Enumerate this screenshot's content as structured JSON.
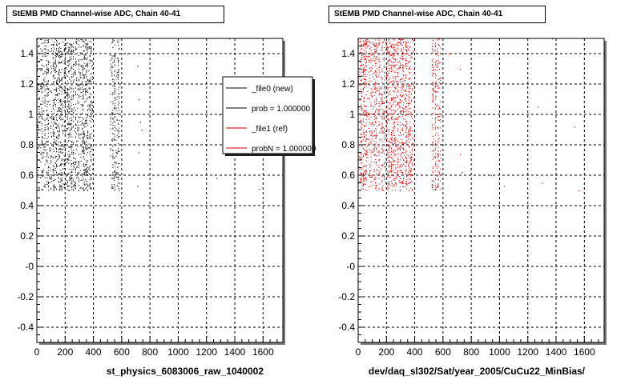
{
  "panels": [
    {
      "title": "StEMB PMD Channel-wise ADC, Chain 40-41",
      "xlabel": "st_physics_6083006_raw_1040002",
      "color": "#000000",
      "legend": [
        {
          "label": "_file0 (new)",
          "color": "#000000"
        },
        {
          "label": "prob = 1.000000",
          "color": "#000000"
        },
        {
          "label": "_file1 (ref)",
          "color": "#cc0000"
        },
        {
          "label": "probN = 1.000000",
          "color": "#cc0000"
        }
      ]
    },
    {
      "title": "StEMB PMD Channel-wise ADC, Chain 40-41",
      "xlabel": "dev/daq_sl302/Sat/year_2005/CuCu22_MinBias/",
      "color": "#dd0000",
      "legend": []
    }
  ],
  "chart_data": [
    {
      "type": "scatter",
      "title": "StEMB PMD Channel-wise ADC, Chain 40-41",
      "xlabel": "st_physics_6083006_raw_1040002",
      "ylabel": "",
      "xlim": [
        0,
        1740
      ],
      "ylim": [
        -0.5,
        1.5
      ],
      "x_ticks": [
        0,
        200,
        400,
        600,
        800,
        1000,
        1200,
        1400,
        1600
      ],
      "y_ticks": [
        -0.4,
        -0.2,
        0,
        0.2,
        0.4,
        0.6,
        0.8,
        1,
        1.2,
        1.4
      ],
      "y_tick_labels": [
        "-0.4",
        "-0.2",
        "-0",
        "0.2",
        "0.4",
        "0.6",
        "0.8",
        "1",
        "1.2",
        "1.4"
      ],
      "grid": true,
      "series": [
        {
          "name": "_file0 (new)",
          "bands": [
            [
              0,
              390,
              0.5,
              1.5
            ],
            [
              520,
              580,
              0.5,
              1.5
            ]
          ],
          "sparse_points": [
            [
              640,
              1.4
            ],
            [
              710,
              1.32
            ],
            [
              720,
              1.2
            ],
            [
              720,
              1.1
            ],
            [
              730,
              0.95
            ],
            [
              740,
              0.9
            ],
            [
              720,
              0.75
            ],
            [
              710,
              0.53
            ],
            [
              1270,
              0.58
            ],
            [
              1360,
              1.5
            ],
            [
              1570,
              0.51
            ],
            [
              1290,
              1.0
            ]
          ]
        }
      ]
    },
    {
      "type": "scatter",
      "title": "StEMB PMD Channel-wise ADC, Chain 40-41",
      "xlabel": "dev/daq_sl302/Sat/year_2005/CuCu22_MinBias/",
      "ylabel": "",
      "xlim": [
        0,
        1740
      ],
      "ylim": [
        -0.5,
        1.5
      ],
      "x_ticks": [
        0,
        200,
        400,
        600,
        800,
        1000,
        1200,
        1400,
        1600
      ],
      "y_ticks": [
        -0.4,
        -0.2,
        0,
        0.2,
        0.4,
        0.6,
        0.8,
        1,
        1.2,
        1.4
      ],
      "y_tick_labels": [
        "-0.4",
        "-0.2",
        "-0",
        "0.2",
        "0.4",
        "0.6",
        "0.8",
        "1",
        "1.2",
        "1.4"
      ],
      "grid": true,
      "series": [
        {
          "name": "_file1 (ref)",
          "bands": [
            [
              0,
              390,
              0.5,
              1.5
            ],
            [
              520,
              580,
              0.5,
              1.5
            ]
          ],
          "sparse_points": [
            [
              640,
              1.4
            ],
            [
              720,
              1.3
            ],
            [
              730,
              1.0
            ],
            [
              720,
              0.74
            ],
            [
              730,
              0.62
            ],
            [
              1270,
              1.05
            ],
            [
              1300,
              0.55
            ],
            [
              1530,
              0.92
            ],
            [
              1560,
              0.5
            ],
            [
              1370,
              1.5
            ],
            [
              940,
              0.6
            ],
            [
              1030,
              0.53
            ]
          ]
        }
      ]
    }
  ]
}
